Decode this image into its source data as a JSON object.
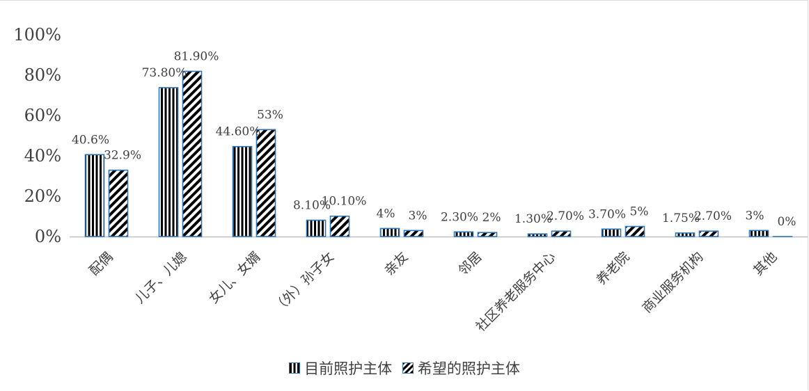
{
  "chart_data": {
    "type": "bar",
    "title": "",
    "xlabel": "",
    "ylabel": "",
    "ylim": [
      0,
      1.0
    ],
    "y_ticks": [
      "0%",
      "20%",
      "40%",
      "60%",
      "80%",
      "100%"
    ],
    "y_tick_values": [
      0,
      0.2,
      0.4,
      0.6,
      0.8,
      1.0
    ],
    "grid": false,
    "legend_position": "bottom",
    "categories": [
      "配偶",
      "儿子、儿媳",
      "女儿、女婿",
      "（外）孙子女",
      "亲友",
      "邻居",
      "社区养老服务中心",
      "养老院",
      "商业服务机构",
      "其他"
    ],
    "series": [
      {
        "name": "目前照护主体",
        "pattern": "vertical",
        "values": [
          0.406,
          0.738,
          0.446,
          0.081,
          0.04,
          0.023,
          0.013,
          0.037,
          0.0175,
          0.03
        ],
        "labels": [
          "40.6%",
          "73.80%",
          "44.60%",
          "8.10%",
          "4%",
          "2.30%",
          "1.30%",
          "3.70%",
          "1.75%",
          "3%"
        ]
      },
      {
        "name": "希望的照护主体",
        "pattern": "diagonal",
        "values": [
          0.329,
          0.819,
          0.53,
          0.101,
          0.03,
          0.02,
          0.027,
          0.05,
          0.027,
          0.0
        ],
        "labels": [
          "32.9%",
          "81.90%",
          "53%",
          "10.10%",
          "3%",
          "2%",
          "2.70%",
          "5%",
          "2.70%",
          "0%"
        ]
      }
    ],
    "colors": {
      "bar_fill": "#000000",
      "bar_border": "#2f75b5",
      "axis": "#bfbfbf",
      "text": "#404040"
    }
  }
}
